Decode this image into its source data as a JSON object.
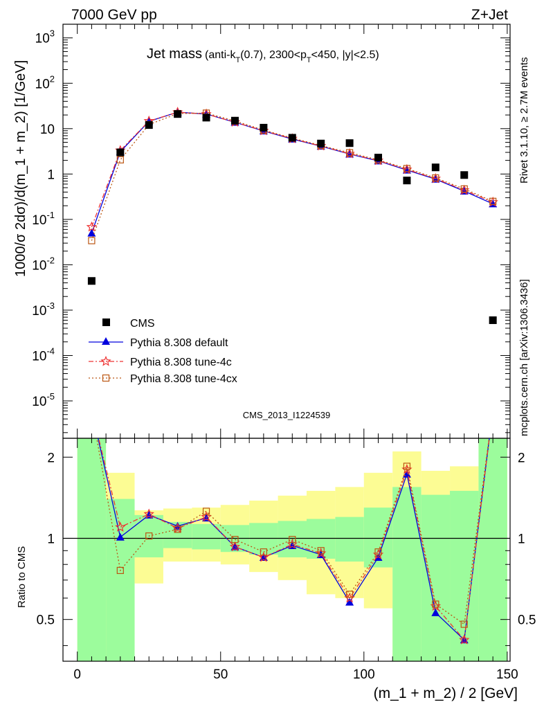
{
  "header": {
    "left": "7000 GeV pp",
    "right": "Z+Jet"
  },
  "title": {
    "main": "Jet mass",
    "detail": "(anti-k",
    "sub_t1": "T",
    "detail2": "(0.7), 2300<p",
    "sub_t2": "T",
    "detail3": "<450, |y|<2.5)"
  },
  "side_labels": {
    "rivet": "Rivet 3.1.10, ≥ 2.7M events",
    "mcplots": "mcplots.cern.ch [arXiv:1306.3436]"
  },
  "watermark": "CMS_2013_I1224539",
  "axes": {
    "ylabel_main": "1000/σ 2dσ)/d(m_1 + m_2) [1/GeV]",
    "ylabel_ratio": "Ratio to CMS",
    "xlabel": "(m_1 + m_2) / 2 [GeV]"
  },
  "chart_data": {
    "type": "scatter",
    "x": [
      5,
      15,
      25,
      35,
      45,
      55,
      65,
      75,
      85,
      95,
      105,
      115,
      125,
      135,
      145
    ],
    "xlim": [
      -5,
      151
    ],
    "xticks": [
      0,
      50,
      100,
      150
    ],
    "ylim_main": [
      1.5e-06,
      2000
    ],
    "yscale_main": "log",
    "yticks_main": [
      "10^-5",
      "10^-4",
      "10^-3",
      "10^-2",
      "10^-1",
      "1",
      "10",
      "10^2",
      "10^3"
    ],
    "ylim_ratio": [
      0.35,
      2.35
    ],
    "yticks_ratio": [
      "0.5",
      "1",
      "2"
    ],
    "legend_position": "lower-left",
    "series": [
      {
        "name": "CMS",
        "color": "#000000",
        "values": [
          0.0044,
          3.0,
          12,
          21,
          17.5,
          15,
          10.5,
          6.3,
          4.7,
          4.8,
          2.3,
          0.72,
          1.4,
          0.95,
          0.0006
        ]
      },
      {
        "name": "Pythia 8.308 default",
        "color": "#0000dd",
        "values": [
          0.05,
          3.1,
          14.5,
          23,
          21,
          13.8,
          8.9,
          5.9,
          4.1,
          2.75,
          1.95,
          1.22,
          0.77,
          0.42,
          0.22
        ]
      },
      {
        "name": "Pythia 8.308 tune-4c",
        "color": "#ee3333",
        "values": [
          0.068,
          3.3,
          14.7,
          23,
          21,
          13.9,
          9.0,
          6.0,
          4.15,
          2.8,
          1.98,
          1.26,
          0.79,
          0.44,
          0.24
        ]
      },
      {
        "name": "Pythia 8.308 tune-4cx",
        "color": "#bb5511",
        "values": [
          0.034,
          2.05,
          12.3,
          21.5,
          22,
          14.8,
          9.3,
          6.2,
          4.25,
          2.95,
          2.05,
          1.32,
          0.82,
          0.47,
          0.25
        ]
      }
    ],
    "ratio_series": [
      {
        "name": "Pythia 8.308 default",
        "values": [
          3.0,
          1.01,
          1.22,
          1.11,
          1.19,
          0.93,
          0.85,
          0.94,
          0.87,
          0.58,
          0.85,
          1.73,
          0.53,
          0.42,
          3.0
        ]
      },
      {
        "name": "Pythia 8.308 tune-4c",
        "values": [
          3.0,
          1.1,
          1.23,
          1.09,
          1.2,
          0.93,
          0.85,
          0.95,
          0.88,
          0.6,
          0.87,
          1.8,
          0.56,
          0.42,
          3.0
        ]
      },
      {
        "name": "Pythia 8.308 tune-4cx",
        "values": [
          3.0,
          0.76,
          1.02,
          1.08,
          1.26,
          0.99,
          0.89,
          0.99,
          0.9,
          0.62,
          0.89,
          1.85,
          0.57,
          0.48,
          3.0
        ]
      }
    ],
    "uncertainty_bands": {
      "bin_edges": [
        0,
        10,
        20,
        30,
        40,
        50,
        60,
        70,
        80,
        90,
        100,
        110,
        120,
        130,
        140,
        150
      ],
      "inner_low": [
        0.0,
        0.3,
        0.85,
        0.92,
        0.91,
        0.89,
        0.87,
        0.85,
        0.84,
        0.82,
        0.78,
        0.3,
        0.3,
        0.3,
        0.0
      ],
      "inner_high": [
        3.0,
        1.4,
        1.22,
        1.15,
        1.13,
        1.12,
        1.14,
        1.16,
        1.18,
        1.2,
        1.3,
        1.55,
        1.45,
        1.5,
        3.0
      ],
      "outer_low": [
        0.0,
        0.0,
        0.68,
        0.82,
        0.82,
        0.8,
        0.75,
        0.7,
        0.62,
        0.6,
        0.55,
        0.3,
        0.3,
        0.3,
        0.0
      ],
      "outer_high": [
        3.0,
        1.75,
        1.27,
        1.29,
        1.3,
        1.33,
        1.38,
        1.44,
        1.5,
        1.55,
        1.75,
        2.1,
        1.78,
        1.85,
        3.0
      ],
      "inner_color": "#9cfc9c",
      "outer_color": "#fcfc94"
    }
  }
}
